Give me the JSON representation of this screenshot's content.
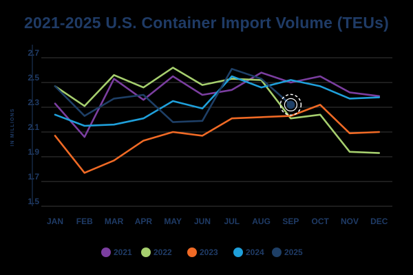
{
  "chart_data": {
    "type": "line",
    "title": "2021-2025 U.S. Container Import Volume (TEUs)",
    "xlabel": "",
    "ylabel": "IN MILLIONS",
    "ylim": [
      1.5,
      2.7
    ],
    "yticks": [
      "2.7",
      "2.5",
      "2.3",
      "2.1",
      "1.9",
      "1.7",
      "1.5"
    ],
    "categories": [
      "JAN",
      "FEB",
      "MAR",
      "APR",
      "MAY",
      "JUN",
      "JUL",
      "AUG",
      "SEP",
      "OCT",
      "NOV",
      "DEC"
    ],
    "grid": true,
    "legend_position": "bottom",
    "series": [
      {
        "name": "2021",
        "color": "#7b3ea0",
        "values": [
          2.33,
          2.06,
          2.53,
          2.36,
          2.55,
          2.4,
          2.44,
          2.58,
          2.5,
          2.55,
          2.42,
          2.39
        ]
      },
      {
        "name": "2022",
        "color": "#a6cf6e",
        "values": [
          2.47,
          2.31,
          2.56,
          2.46,
          2.62,
          2.48,
          2.53,
          2.52,
          2.21,
          2.24,
          1.94,
          1.93
        ]
      },
      {
        "name": "2023",
        "color": "#f06a25",
        "values": [
          2.07,
          1.77,
          1.87,
          2.03,
          2.1,
          2.07,
          2.21,
          2.22,
          2.23,
          2.32,
          2.09,
          2.1
        ]
      },
      {
        "name": "2024",
        "color": "#1fa0db",
        "values": [
          2.24,
          2.15,
          2.16,
          2.21,
          2.35,
          2.29,
          2.55,
          2.46,
          2.52,
          2.47,
          2.37,
          2.38
        ]
      },
      {
        "name": "2025",
        "color": "#1e3f66",
        "values": [
          2.47,
          2.23,
          2.37,
          2.4,
          2.18,
          2.19,
          2.61,
          2.53,
          2.32,
          null,
          null,
          null
        ]
      }
    ]
  }
}
